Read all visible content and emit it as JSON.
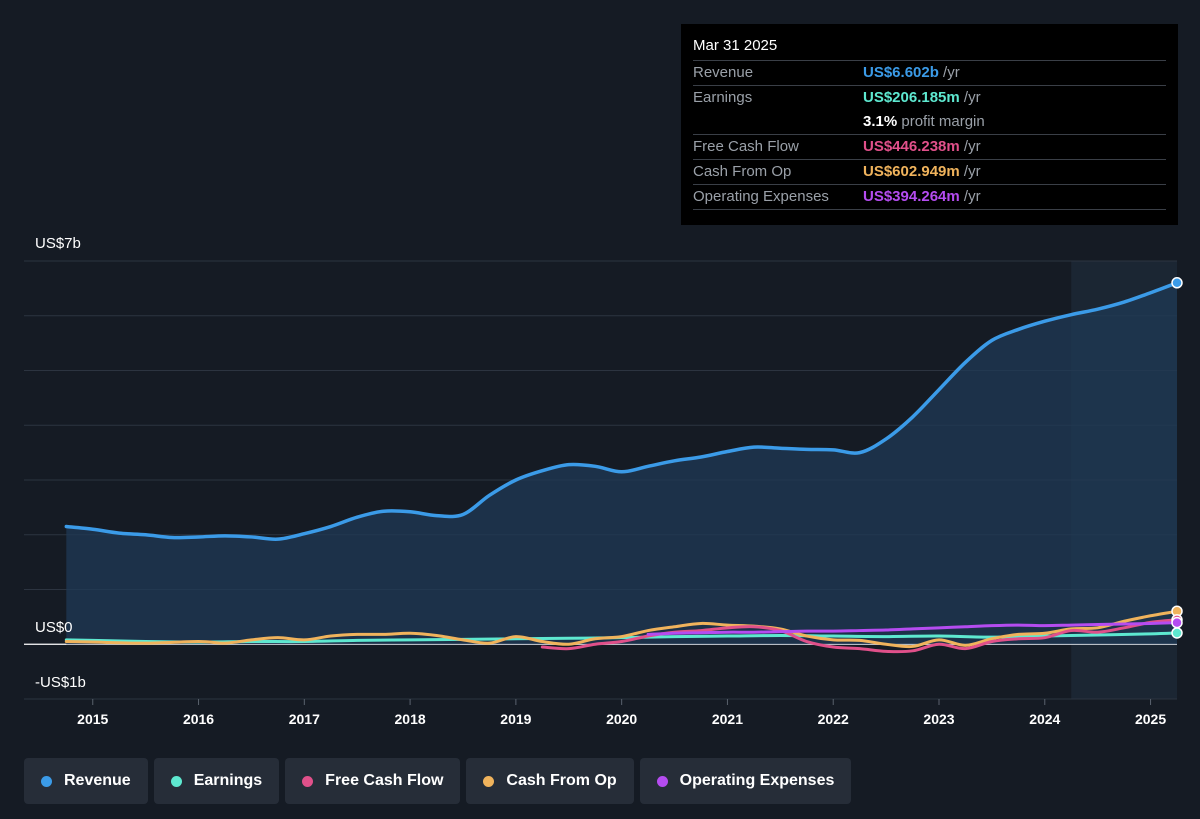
{
  "tooltip": {
    "date": "Mar 31 2025",
    "rows": [
      {
        "key": "Revenue",
        "value": "US$6.602b",
        "unit": " /yr",
        "color": "#3b9be8"
      },
      {
        "key": "Earnings",
        "value": "US$206.185m",
        "unit": " /yr",
        "color": "#5ee8d0"
      },
      {
        "key": "",
        "value": "3.1%",
        "unit": " profit margin",
        "color": "#ffffff"
      },
      {
        "key": "Free Cash Flow",
        "value": "US$446.238m",
        "unit": " /yr",
        "color": "#e0508a"
      },
      {
        "key": "Cash From Op",
        "value": "US$602.949m",
        "unit": " /yr",
        "color": "#f0b35c"
      },
      {
        "key": "Operating Expenses",
        "value": "US$394.264m",
        "unit": " /yr",
        "color": "#b54cf0"
      }
    ]
  },
  "legend": [
    {
      "label": "Revenue",
      "color": "#3b9be8"
    },
    {
      "label": "Earnings",
      "color": "#5ee8d0"
    },
    {
      "label": "Free Cash Flow",
      "color": "#e0508a"
    },
    {
      "label": "Cash From Op",
      "color": "#f0b35c"
    },
    {
      "label": "Operating Expenses",
      "color": "#b54cf0"
    }
  ],
  "chart_data": {
    "type": "line",
    "ylabels": {
      "top": "US$7b",
      "zero": "US$0",
      "bottom": "-US$1b"
    },
    "ylim": [
      -1,
      7
    ],
    "xlim": [
      2014.35,
      2025.25
    ],
    "x_ticks": [
      "2015",
      "2016",
      "2017",
      "2018",
      "2019",
      "2020",
      "2021",
      "2022",
      "2023",
      "2024",
      "2025"
    ],
    "highlight_from": 2024.25,
    "series": [
      {
        "name": "Revenue",
        "color": "#3b9be8",
        "fill": true,
        "points": [
          [
            2014.75,
            2.15
          ],
          [
            2015.0,
            2.1
          ],
          [
            2015.25,
            2.03
          ],
          [
            2015.5,
            2.0
          ],
          [
            2015.75,
            1.95
          ],
          [
            2016.0,
            1.96
          ],
          [
            2016.25,
            1.98
          ],
          [
            2016.5,
            1.96
          ],
          [
            2016.75,
            1.92
          ],
          [
            2017.0,
            2.02
          ],
          [
            2017.25,
            2.15
          ],
          [
            2017.5,
            2.32
          ],
          [
            2017.75,
            2.43
          ],
          [
            2018.0,
            2.42
          ],
          [
            2018.25,
            2.35
          ],
          [
            2018.5,
            2.37
          ],
          [
            2018.75,
            2.72
          ],
          [
            2019.0,
            3.0
          ],
          [
            2019.25,
            3.17
          ],
          [
            2019.5,
            3.28
          ],
          [
            2019.75,
            3.25
          ],
          [
            2020.0,
            3.15
          ],
          [
            2020.25,
            3.25
          ],
          [
            2020.5,
            3.35
          ],
          [
            2020.75,
            3.42
          ],
          [
            2021.0,
            3.52
          ],
          [
            2021.25,
            3.6
          ],
          [
            2021.5,
            3.58
          ],
          [
            2021.75,
            3.56
          ],
          [
            2022.0,
            3.55
          ],
          [
            2022.25,
            3.5
          ],
          [
            2022.5,
            3.75
          ],
          [
            2022.75,
            4.15
          ],
          [
            2023.0,
            4.65
          ],
          [
            2023.25,
            5.15
          ],
          [
            2023.5,
            5.55
          ],
          [
            2023.75,
            5.75
          ],
          [
            2024.0,
            5.9
          ],
          [
            2024.25,
            6.02
          ],
          [
            2024.5,
            6.12
          ],
          [
            2024.75,
            6.25
          ],
          [
            2025.0,
            6.42
          ],
          [
            2025.25,
            6.602
          ]
        ]
      },
      {
        "name": "Earnings",
        "color": "#5ee8d0",
        "fill": false,
        "points": [
          [
            2014.75,
            0.08
          ],
          [
            2015.0,
            0.07
          ],
          [
            2015.5,
            0.05
          ],
          [
            2016.0,
            0.04
          ],
          [
            2016.5,
            0.05
          ],
          [
            2017.0,
            0.05
          ],
          [
            2017.5,
            0.07
          ],
          [
            2018.0,
            0.08
          ],
          [
            2018.5,
            0.09
          ],
          [
            2019.0,
            0.1
          ],
          [
            2019.5,
            0.11
          ],
          [
            2020.0,
            0.12
          ],
          [
            2020.5,
            0.14
          ],
          [
            2021.0,
            0.15
          ],
          [
            2021.5,
            0.16
          ],
          [
            2022.0,
            0.15
          ],
          [
            2022.5,
            0.14
          ],
          [
            2023.0,
            0.15
          ],
          [
            2023.5,
            0.13
          ],
          [
            2024.0,
            0.15
          ],
          [
            2024.5,
            0.17
          ],
          [
            2025.0,
            0.19
          ],
          [
            2025.25,
            0.206
          ]
        ]
      },
      {
        "name": "Free Cash Flow",
        "color": "#e0508a",
        "fill": false,
        "points": [
          [
            2019.25,
            -0.05
          ],
          [
            2019.5,
            -0.08
          ],
          [
            2019.75,
            0.0
          ],
          [
            2020.0,
            0.05
          ],
          [
            2020.25,
            0.15
          ],
          [
            2020.5,
            0.22
          ],
          [
            2020.75,
            0.25
          ],
          [
            2021.0,
            0.3
          ],
          [
            2021.25,
            0.32
          ],
          [
            2021.5,
            0.25
          ],
          [
            2021.75,
            0.05
          ],
          [
            2022.0,
            -0.05
          ],
          [
            2022.25,
            -0.08
          ],
          [
            2022.5,
            -0.13
          ],
          [
            2022.75,
            -0.12
          ],
          [
            2023.0,
            0.0
          ],
          [
            2023.25,
            -0.08
          ],
          [
            2023.5,
            0.05
          ],
          [
            2023.75,
            0.1
          ],
          [
            2024.0,
            0.12
          ],
          [
            2024.25,
            0.25
          ],
          [
            2024.5,
            0.22
          ],
          [
            2024.75,
            0.3
          ],
          [
            2025.0,
            0.4
          ],
          [
            2025.25,
            0.446
          ]
        ]
      },
      {
        "name": "Cash From Op",
        "color": "#f0b35c",
        "fill": false,
        "points": [
          [
            2014.75,
            0.05
          ],
          [
            2015.0,
            0.04
          ],
          [
            2015.5,
            0.02
          ],
          [
            2016.0,
            0.05
          ],
          [
            2016.25,
            0.02
          ],
          [
            2016.5,
            0.08
          ],
          [
            2016.75,
            0.12
          ],
          [
            2017.0,
            0.08
          ],
          [
            2017.25,
            0.15
          ],
          [
            2017.5,
            0.18
          ],
          [
            2017.75,
            0.18
          ],
          [
            2018.0,
            0.2
          ],
          [
            2018.25,
            0.16
          ],
          [
            2018.5,
            0.08
          ],
          [
            2018.75,
            0.02
          ],
          [
            2019.0,
            0.14
          ],
          [
            2019.25,
            0.05
          ],
          [
            2019.5,
            0.0
          ],
          [
            2019.75,
            0.1
          ],
          [
            2020.0,
            0.14
          ],
          [
            2020.25,
            0.25
          ],
          [
            2020.5,
            0.32
          ],
          [
            2020.75,
            0.38
          ],
          [
            2021.0,
            0.35
          ],
          [
            2021.25,
            0.33
          ],
          [
            2021.5,
            0.28
          ],
          [
            2021.75,
            0.15
          ],
          [
            2022.0,
            0.08
          ],
          [
            2022.25,
            0.07
          ],
          [
            2022.5,
            0.0
          ],
          [
            2022.75,
            -0.04
          ],
          [
            2023.0,
            0.08
          ],
          [
            2023.25,
            -0.02
          ],
          [
            2023.5,
            0.1
          ],
          [
            2023.75,
            0.18
          ],
          [
            2024.0,
            0.2
          ],
          [
            2024.25,
            0.28
          ],
          [
            2024.5,
            0.3
          ],
          [
            2024.75,
            0.42
          ],
          [
            2025.0,
            0.52
          ],
          [
            2025.25,
            0.603
          ]
        ]
      },
      {
        "name": "Operating Expenses",
        "color": "#b54cf0",
        "fill": false,
        "points": [
          [
            2020.25,
            0.18
          ],
          [
            2020.5,
            0.2
          ],
          [
            2020.75,
            0.21
          ],
          [
            2021.0,
            0.22
          ],
          [
            2021.25,
            0.22
          ],
          [
            2021.5,
            0.23
          ],
          [
            2021.75,
            0.24
          ],
          [
            2022.0,
            0.24
          ],
          [
            2022.25,
            0.25
          ],
          [
            2022.5,
            0.26
          ],
          [
            2022.75,
            0.28
          ],
          [
            2023.0,
            0.3
          ],
          [
            2023.25,
            0.32
          ],
          [
            2023.5,
            0.34
          ],
          [
            2023.75,
            0.35
          ],
          [
            2024.0,
            0.34
          ],
          [
            2024.25,
            0.35
          ],
          [
            2024.5,
            0.36
          ],
          [
            2024.75,
            0.37
          ],
          [
            2025.0,
            0.38
          ],
          [
            2025.25,
            0.394
          ]
        ]
      }
    ]
  }
}
